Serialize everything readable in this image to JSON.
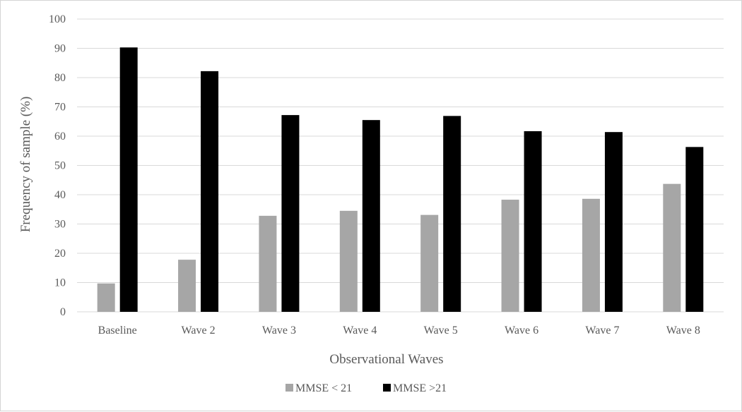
{
  "chart_data": {
    "type": "bar",
    "title": "",
    "xlabel": "Observational Waves",
    "ylabel": "Frequency of sample (%)",
    "ylim": [
      0,
      100
    ],
    "yticks": [
      "0",
      "10",
      "20",
      "30",
      "40",
      "50",
      "60",
      "70",
      "80",
      "90",
      "100"
    ],
    "grid": true,
    "legend_position": "bottom",
    "categories": [
      "Baseline",
      "Wave 2",
      "Wave 3",
      "Wave 4",
      "Wave 5",
      "Wave 6",
      "Wave 7",
      "Wave 8"
    ],
    "series": [
      {
        "name": "MMSE < 21",
        "color": "#a6a6a6",
        "values": [
          9.7,
          17.8,
          32.8,
          34.5,
          33.1,
          38.3,
          38.6,
          43.7
        ]
      },
      {
        "name": "MMSE >21",
        "color": "#000000",
        "values": [
          90.3,
          82.2,
          67.2,
          65.5,
          66.9,
          61.7,
          61.4,
          56.3
        ]
      }
    ]
  },
  "colors": {
    "gridline": "#d9d9d9",
    "text": "#595959"
  }
}
